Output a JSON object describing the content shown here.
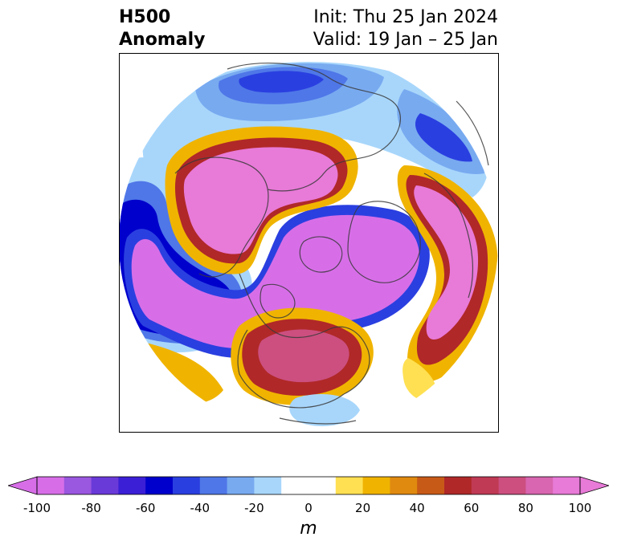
{
  "title": {
    "left_line1": "H500",
    "left_line2": "Anomaly",
    "right_line1": "Init: Thu 25 Jan 2024",
    "right_line2": "Valid: 19 Jan – 25 Jan"
  },
  "map": {
    "projection": "north-polar-stereographic",
    "field": "500 hPa geopotential height anomaly",
    "features": [
      {
        "name": "pacific-north-america-low",
        "sign": "negative",
        "peak": -100
      },
      {
        "name": "arctic-canada-low",
        "sign": "negative",
        "peak": -100
      },
      {
        "name": "eurasia-high",
        "sign": "positive",
        "peak": 100
      },
      {
        "name": "east-asia-high",
        "sign": "positive",
        "peak": 100
      },
      {
        "name": "north-america-high",
        "sign": "positive",
        "peak": 80
      },
      {
        "name": "south-asia-low",
        "sign": "negative",
        "peak": -60
      },
      {
        "name": "east-pacific-low",
        "sign": "negative",
        "peak": -40
      }
    ]
  },
  "colorbar": {
    "unit": "m",
    "extend": "both",
    "levels": [
      -100,
      -90,
      -80,
      -70,
      -60,
      -50,
      -40,
      -30,
      -20,
      -10,
      0,
      10,
      20,
      30,
      40,
      50,
      60,
      70,
      80,
      90,
      100
    ],
    "colors": [
      "#d76ee8",
      "#9a57e0",
      "#6a3ad9",
      "#3b1fd6",
      "#0000cc",
      "#2a3fe0",
      "#4f77e8",
      "#78aaf0",
      "#a8d6fb",
      "#ffffff",
      "#ffffff",
      "#ffe052",
      "#f0b400",
      "#e08a10",
      "#c85a18",
      "#b02828",
      "#c03a55",
      "#cc4f80",
      "#d866b0",
      "#e87ad8"
    ],
    "under_color": "#d76ee8",
    "over_color": "#e87ad8",
    "tick_labels": [
      "-100",
      "-80",
      "-60",
      "-40",
      "-20",
      "0",
      "20",
      "40",
      "60",
      "80",
      "100"
    ]
  }
}
